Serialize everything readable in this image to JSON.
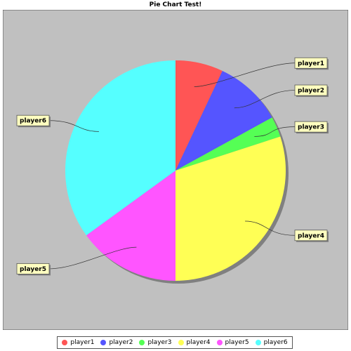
{
  "chart_data": {
    "type": "pie",
    "title": "Pie Chart Test!",
    "categories": [
      "player1",
      "player2",
      "player3",
      "player4",
      "player5",
      "player6"
    ],
    "values": [
      7,
      10,
      3,
      30,
      15,
      35
    ],
    "colors": [
      "#ff5555",
      "#5555ff",
      "#55ff55",
      "#ffff55",
      "#ff55ff",
      "#55ffff"
    ],
    "start_angle_deg": 90,
    "direction": "clockwise",
    "legend_position": "bottom",
    "plot_background": "#c0c0c0",
    "label_background": "#ffffc0"
  }
}
